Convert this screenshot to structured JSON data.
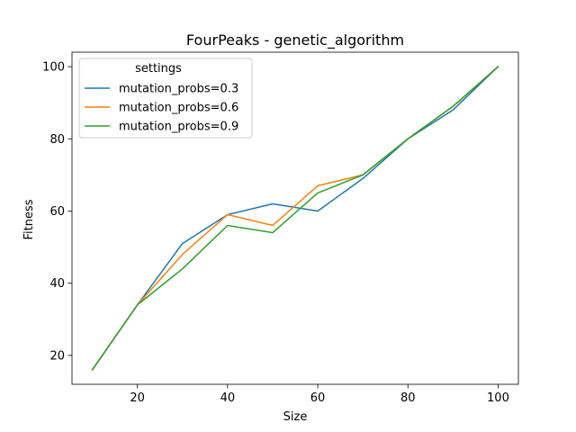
{
  "chart_data": {
    "type": "line",
    "title": "FourPeaks - genetic_algorithm",
    "xlabel": "Size",
    "ylabel": "Fitness",
    "xlim": [
      5.5,
      104.5
    ],
    "ylim": [
      12,
      104
    ],
    "xticks": [
      20,
      40,
      60,
      80,
      100
    ],
    "yticks": [
      20,
      40,
      60,
      80,
      100
    ],
    "grid": false,
    "legend": {
      "title": "settings",
      "placement": "upper left"
    },
    "x": [
      10,
      20,
      30,
      40,
      50,
      60,
      70,
      80,
      90,
      100
    ],
    "series": [
      {
        "name": "mutation_probs=0.3",
        "color": "#1f77b4",
        "values": [
          16,
          34,
          51,
          59,
          62,
          60,
          69,
          80,
          88,
          100
        ]
      },
      {
        "name": "mutation_probs=0.6",
        "color": "#ff7f0e",
        "values": [
          16,
          34,
          48,
          59,
          56,
          67,
          70,
          80,
          89,
          100
        ]
      },
      {
        "name": "mutation_probs=0.9",
        "color": "#2ca02c",
        "values": [
          16,
          34,
          44,
          56,
          54,
          65,
          70,
          80,
          89,
          100
        ]
      }
    ]
  }
}
